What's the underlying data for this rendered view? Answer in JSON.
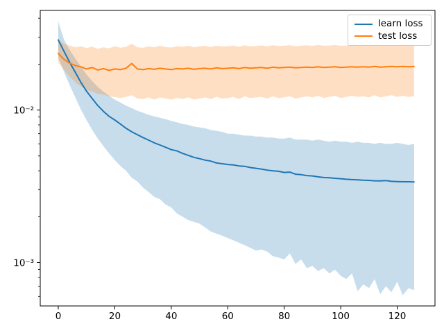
{
  "figure": {
    "background": "#ffffff"
  },
  "legend": {
    "items": [
      {
        "label": "learn loss",
        "color": "#1f77b4"
      },
      {
        "label": "test loss",
        "color": "#ff7f0e"
      }
    ]
  },
  "chart_data": {
    "type": "line",
    "title": "",
    "xlabel": "",
    "ylabel": "",
    "yscale": "log",
    "grid": false,
    "legend_position": "upper right",
    "xlim": [
      -6.4,
      133.4
    ],
    "ylim": [
      0.00052,
      0.045
    ],
    "x_ticks": [
      {
        "value": 0,
        "label": "0"
      },
      {
        "value": 20,
        "label": "20"
      },
      {
        "value": 40,
        "label": "40"
      },
      {
        "value": 60,
        "label": "60"
      },
      {
        "value": 80,
        "label": "80"
      },
      {
        "value": 100,
        "label": "100"
      },
      {
        "value": 120,
        "label": "120"
      }
    ],
    "y_ticks": [
      {
        "value": 0.01,
        "label": "10⁻²"
      },
      {
        "value": 0.001,
        "label": "10⁻³"
      }
    ],
    "x": [
      0,
      2,
      4,
      6,
      8,
      10,
      12,
      14,
      16,
      18,
      20,
      22,
      24,
      26,
      28,
      30,
      32,
      34,
      36,
      38,
      40,
      42,
      44,
      46,
      48,
      50,
      52,
      54,
      56,
      58,
      60,
      62,
      64,
      66,
      68,
      70,
      72,
      74,
      76,
      78,
      80,
      82,
      84,
      86,
      88,
      90,
      92,
      94,
      96,
      98,
      100,
      102,
      104,
      106,
      108,
      110,
      112,
      114,
      116,
      118,
      120,
      122,
      124,
      126
    ],
    "series": [
      {
        "name": "learn loss",
        "color": "#1f77b4",
        "band_alpha": 0.25,
        "values": [
          0.0288,
          0.0243,
          0.0206,
          0.0177,
          0.0152,
          0.0133,
          0.0119,
          0.0107,
          0.0098,
          0.0091,
          0.0086,
          0.0081,
          0.0076,
          0.0072,
          0.0069,
          0.0066,
          0.00635,
          0.0061,
          0.0059,
          0.0057,
          0.0055,
          0.0054,
          0.0052,
          0.00505,
          0.0049,
          0.0048,
          0.0047,
          0.00463,
          0.0045,
          0.00445,
          0.0044,
          0.00437,
          0.0043,
          0.00428,
          0.0042,
          0.00415,
          0.0041,
          0.00404,
          0.004,
          0.00397,
          0.0039,
          0.00392,
          0.0038,
          0.00377,
          0.00372,
          0.0037,
          0.00365,
          0.00361,
          0.0036,
          0.00357,
          0.00355,
          0.00352,
          0.0035,
          0.00349,
          0.00347,
          0.00346,
          0.00344,
          0.00343,
          0.00345,
          0.00341,
          0.0034,
          0.00339,
          0.00339,
          0.00338
        ],
        "band_upper": [
          0.038,
          0.029,
          0.0248,
          0.0218,
          0.0193,
          0.0171,
          0.0155,
          0.0142,
          0.0132,
          0.0124,
          0.0117,
          0.0112,
          0.0107,
          0.0103,
          0.0099,
          0.0096,
          0.0093,
          0.0091,
          0.0089,
          0.0087,
          0.0085,
          0.0083,
          0.0081,
          0.008,
          0.0078,
          0.0077,
          0.0076,
          0.0074,
          0.0073,
          0.0072,
          0.007,
          0.007,
          0.0069,
          0.0068,
          0.0068,
          0.0067,
          0.0067,
          0.0066,
          0.0066,
          0.0065,
          0.0065,
          0.0066,
          0.0064,
          0.0064,
          0.0064,
          0.0063,
          0.0064,
          0.0063,
          0.0062,
          0.0063,
          0.0062,
          0.0062,
          0.0061,
          0.0062,
          0.0061,
          0.0061,
          0.006,
          0.0061,
          0.006,
          0.006,
          0.0061,
          0.006,
          0.0059,
          0.006
        ],
        "band_lower": [
          0.022,
          0.0178,
          0.0146,
          0.0121,
          0.0101,
          0.0086,
          0.0074,
          0.0065,
          0.0058,
          0.0052,
          0.0047,
          0.0043,
          0.004,
          0.0036,
          0.0034,
          0.0031,
          0.0029,
          0.0027,
          0.0026,
          0.0024,
          0.0023,
          0.0021,
          0.002,
          0.0019,
          0.00185,
          0.0018,
          0.0017,
          0.0016,
          0.00155,
          0.0015,
          0.00145,
          0.0014,
          0.00135,
          0.0013,
          0.00125,
          0.0012,
          0.00122,
          0.00118,
          0.0011,
          0.00108,
          0.00105,
          0.00115,
          0.00098,
          0.00105,
          0.00092,
          0.00095,
          0.00088,
          0.00092,
          0.00085,
          0.0009,
          0.00082,
          0.00078,
          0.00085,
          0.00065,
          0.00072,
          0.00068,
          0.00078,
          0.00062,
          0.0007,
          0.00064,
          0.00075,
          0.00061,
          0.00068,
          0.00066
        ]
      },
      {
        "name": "test loss",
        "color": "#ff7f0e",
        "band_alpha": 0.25,
        "values": [
          0.0235,
          0.0215,
          0.0203,
          0.0196,
          0.0192,
          0.0186,
          0.019,
          0.0183,
          0.0187,
          0.0182,
          0.0186,
          0.0184,
          0.0188,
          0.0202,
          0.0186,
          0.0184,
          0.0187,
          0.0185,
          0.0188,
          0.0186,
          0.0184,
          0.0187,
          0.0186,
          0.0188,
          0.0185,
          0.0187,
          0.0188,
          0.0186,
          0.0189,
          0.0187,
          0.0188,
          0.0189,
          0.0187,
          0.019,
          0.0188,
          0.0189,
          0.019,
          0.0188,
          0.0191,
          0.0189,
          0.019,
          0.0191,
          0.0189,
          0.019,
          0.0191,
          0.019,
          0.0192,
          0.019,
          0.0191,
          0.0192,
          0.019,
          0.0191,
          0.0192,
          0.0191,
          0.0192,
          0.0191,
          0.0193,
          0.0191,
          0.0192,
          0.0193,
          0.0192,
          0.0193,
          0.0192,
          0.0193
        ],
        "band_upper": [
          0.029,
          0.0272,
          0.0265,
          0.0258,
          0.0262,
          0.0255,
          0.026,
          0.0252,
          0.0258,
          0.0254,
          0.0262,
          0.0256,
          0.026,
          0.0272,
          0.0258,
          0.0256,
          0.0262,
          0.0258,
          0.0264,
          0.0259,
          0.0257,
          0.0262,
          0.026,
          0.0264,
          0.0258,
          0.0262,
          0.0263,
          0.0259,
          0.0264,
          0.0261,
          0.0262,
          0.0264,
          0.026,
          0.0266,
          0.0262,
          0.0263,
          0.0265,
          0.0262,
          0.0266,
          0.0263,
          0.0264,
          0.0266,
          0.0262,
          0.0264,
          0.0266,
          0.0264,
          0.0267,
          0.0264,
          0.0265,
          0.0267,
          0.0264,
          0.0265,
          0.0267,
          0.0265,
          0.0266,
          0.0265,
          0.0268,
          0.0265,
          0.0266,
          0.0268,
          0.0266,
          0.0267,
          0.0266,
          0.0267
        ],
        "band_lower": [
          0.0205,
          0.0184,
          0.0166,
          0.0152,
          0.0143,
          0.0136,
          0.0132,
          0.0128,
          0.0126,
          0.0123,
          0.0122,
          0.012,
          0.0122,
          0.0125,
          0.0119,
          0.0118,
          0.0121,
          0.0117,
          0.0121,
          0.0119,
          0.0117,
          0.012,
          0.0118,
          0.0121,
          0.0117,
          0.0119,
          0.0121,
          0.0118,
          0.0122,
          0.0119,
          0.012,
          0.0122,
          0.0118,
          0.0123,
          0.012,
          0.0121,
          0.0122,
          0.0119,
          0.0123,
          0.012,
          0.0121,
          0.0123,
          0.0119,
          0.0121,
          0.0123,
          0.0121,
          0.0124,
          0.012,
          0.0122,
          0.0124,
          0.012,
          0.0122,
          0.0124,
          0.0122,
          0.0123,
          0.0121,
          0.0125,
          0.0121,
          0.0123,
          0.0125,
          0.0122,
          0.0124,
          0.0122,
          0.0123
        ]
      }
    ]
  }
}
